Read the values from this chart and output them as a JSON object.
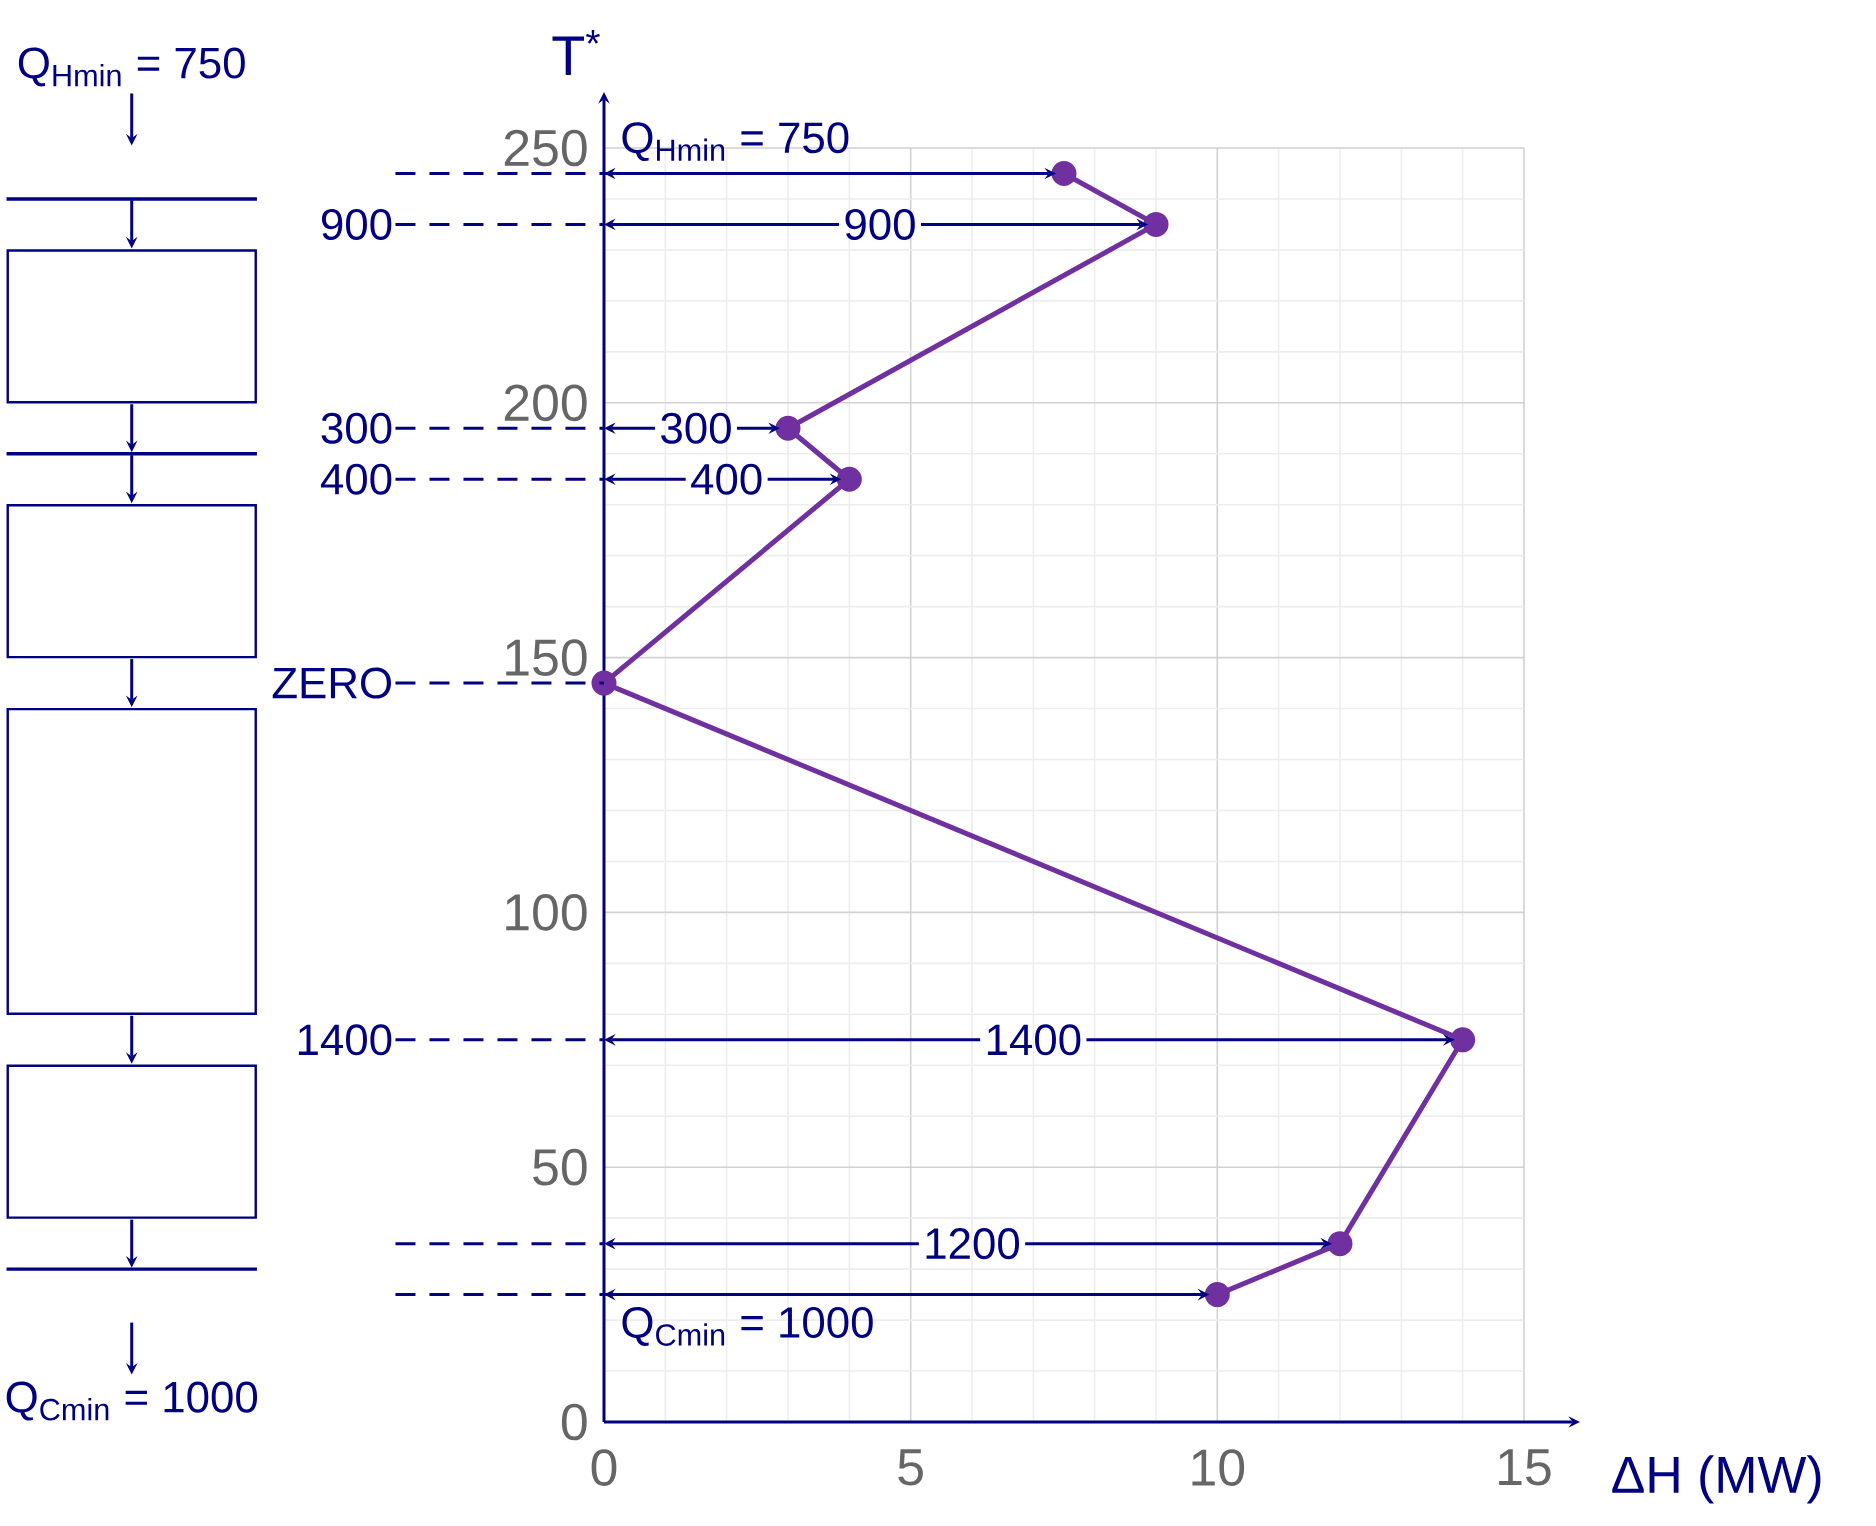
{
  "chart_data": {
    "type": "line",
    "xlabel": "ΔH (MW)",
    "ylabel": "T$^{*}$",
    "x": [
      7.5,
      9,
      3,
      4,
      0,
      14,
      12,
      10
    ],
    "series": [
      {
        "color": "#7030a0",
        "values": [
          245,
          235,
          195,
          185,
          145,
          75,
          35,
          25
        ]
      }
    ],
    "marker": "circle",
    "grid": true,
    "xlim": [
      0,
      15
    ],
    "ylim": [
      0,
      250
    ],
    "xticks": [
      0,
      5,
      10,
      15
    ],
    "yticks": [
      0,
      50,
      100,
      150,
      200,
      250
    ],
    "annotations": [
      "Q$_{Hmin}$ = 750",
      "900",
      "300",
      "400",
      "ZERO",
      "1400",
      "Q$_{Cmin}$ = 1000",
      {
        "text": "Q$_{Hmin}$ = 750",
        "x": 7.5,
        "y": 245
      },
      {
        "text": "900",
        "x": 9,
        "y": 235
      },
      {
        "text": "300",
        "x": 3,
        "y": 195
      },
      {
        "text": "400",
        "x": 4,
        "y": 185
      },
      {
        "text": "1400",
        "x": 14,
        "y": 75
      },
      {
        "text": "1200",
        "x": 12,
        "y": 35
      },
      {
        "text": "Q$_{Cmin}$ = 1000",
        "x": 10,
        "y": 25
      }
    ]
  }
}
